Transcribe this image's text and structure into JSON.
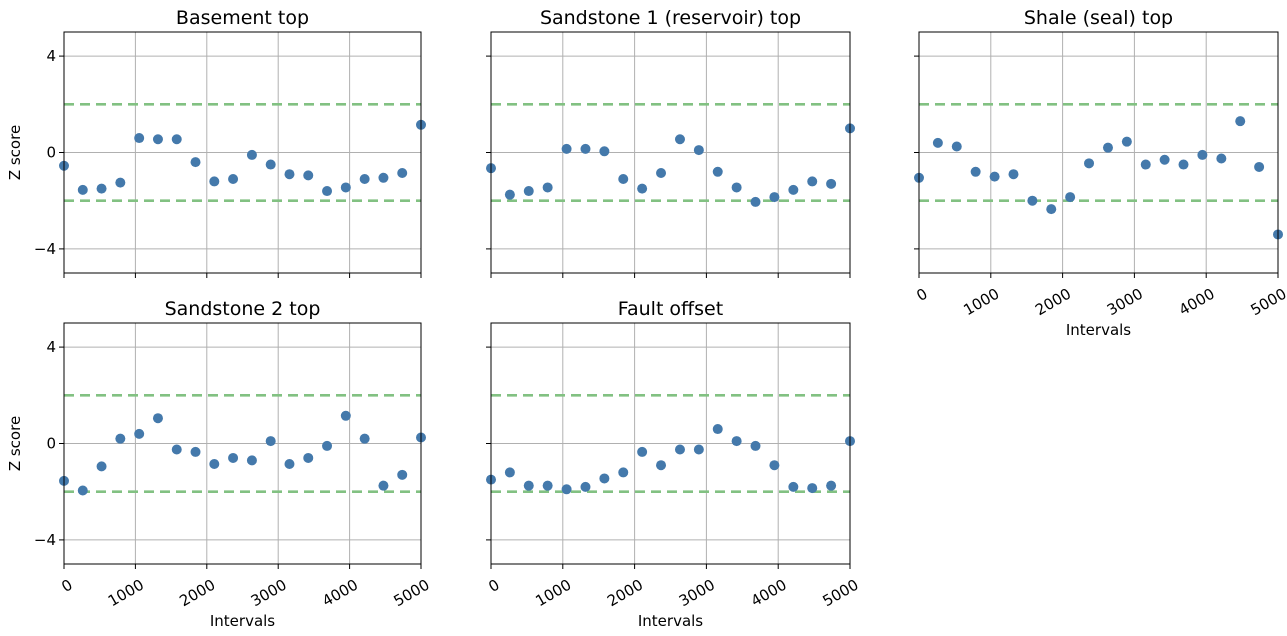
{
  "chart_data": [
    {
      "type": "scatter",
      "title": "Basement top",
      "xlabel": "",
      "ylabel": "Z score",
      "xlim": [
        0,
        5000
      ],
      "ylim": [
        -5,
        5
      ],
      "xticks": [
        "0",
        "1000",
        "2000",
        "3000",
        "4000",
        "5000"
      ],
      "yticks": [
        "4",
        "0",
        "−4"
      ],
      "reference_lines_y": [
        2,
        -2
      ],
      "grid": true,
      "x": [
        0,
        263,
        526,
        789,
        1053,
        1316,
        1579,
        1842,
        2105,
        2368,
        2632,
        2895,
        3158,
        3421,
        3684,
        3947,
        4211,
        4474,
        4737,
        5000
      ],
      "y": [
        -0.55,
        -1.55,
        -1.5,
        -1.25,
        0.6,
        0.55,
        0.55,
        -0.4,
        -1.2,
        -1.1,
        -0.1,
        -0.5,
        -0.9,
        -0.95,
        -1.6,
        -1.45,
        -1.1,
        -1.05,
        -0.85,
        1.15
      ]
    },
    {
      "type": "scatter",
      "title": "Sandstone 1 (reservoir) top",
      "xlabel": "",
      "ylabel": "",
      "xlim": [
        0,
        5000
      ],
      "ylim": [
        -5,
        5
      ],
      "xticks": [
        "0",
        "1000",
        "2000",
        "3000",
        "4000",
        "5000"
      ],
      "yticks": [
        "4",
        "0",
        "−4"
      ],
      "reference_lines_y": [
        2,
        -2
      ],
      "grid": true,
      "x": [
        0,
        263,
        526,
        789,
        1053,
        1316,
        1579,
        1842,
        2105,
        2368,
        2632,
        2895,
        3158,
        3421,
        3684,
        3947,
        4211,
        4474,
        4737,
        5000
      ],
      "y": [
        -0.65,
        -1.75,
        -1.6,
        -1.45,
        0.15,
        0.15,
        0.05,
        -1.1,
        -1.5,
        -0.85,
        0.55,
        0.1,
        -0.8,
        -1.45,
        -2.05,
        -1.85,
        -1.55,
        -1.2,
        -1.3,
        1.0
      ]
    },
    {
      "type": "scatter",
      "title": "Shale (seal) top",
      "xlabel": "Intervals",
      "ylabel": "",
      "xlim": [
        0,
        5000
      ],
      "ylim": [
        -5,
        5
      ],
      "xticks": [
        "0",
        "1000",
        "2000",
        "3000",
        "4000",
        "5000"
      ],
      "yticks": [
        "4",
        "0",
        "−4"
      ],
      "reference_lines_y": [
        2,
        -2
      ],
      "grid": true,
      "x": [
        0,
        263,
        526,
        789,
        1053,
        1316,
        1579,
        1842,
        2105,
        2368,
        2632,
        2895,
        3158,
        3421,
        3684,
        3947,
        4211,
        4474,
        4737,
        5000
      ],
      "y": [
        -1.05,
        0.4,
        0.25,
        -0.8,
        -1.0,
        -0.9,
        -2.0,
        -2.35,
        -1.85,
        -0.45,
        0.2,
        0.45,
        -0.5,
        -0.3,
        -0.5,
        -0.1,
        -0.25,
        1.3,
        -0.6,
        -3.4
      ]
    },
    {
      "type": "scatter",
      "title": "Sandstone 2 top",
      "xlabel": "Intervals",
      "ylabel": "Z score",
      "xlim": [
        0,
        5000
      ],
      "ylim": [
        -5,
        5
      ],
      "xticks": [
        "0",
        "1000",
        "2000",
        "3000",
        "4000",
        "5000"
      ],
      "yticks": [
        "4",
        "0",
        "−4"
      ],
      "reference_lines_y": [
        2,
        -2
      ],
      "grid": true,
      "x": [
        0,
        263,
        526,
        789,
        1053,
        1316,
        1579,
        1842,
        2105,
        2368,
        2632,
        2895,
        3158,
        3421,
        3684,
        3947,
        4211,
        4474,
        4737,
        5000
      ],
      "y": [
        -1.55,
        -1.95,
        -0.95,
        0.2,
        0.4,
        1.05,
        -0.25,
        -0.35,
        -0.85,
        -0.6,
        -0.7,
        0.1,
        -0.85,
        -0.6,
        -0.1,
        1.15,
        0.2,
        -1.75,
        -1.3,
        0.25
      ]
    },
    {
      "type": "scatter",
      "title": "Fault offset",
      "xlabel": "Intervals",
      "ylabel": "",
      "xlim": [
        0,
        5000
      ],
      "ylim": [
        -5,
        5
      ],
      "xticks": [
        "0",
        "1000",
        "2000",
        "3000",
        "4000",
        "5000"
      ],
      "yticks": [
        "4",
        "0",
        "−4"
      ],
      "reference_lines_y": [
        2,
        -2
      ],
      "grid": true,
      "x": [
        0,
        263,
        526,
        789,
        1053,
        1316,
        1579,
        1842,
        2105,
        2368,
        2632,
        2895,
        3158,
        3421,
        3684,
        3947,
        4211,
        4474,
        4737,
        5000
      ],
      "y": [
        -1.5,
        -1.2,
        -1.75,
        -1.75,
        -1.9,
        -1.8,
        -1.45,
        -1.2,
        -0.35,
        -0.9,
        -0.25,
        -0.25,
        0.6,
        0.1,
        -0.1,
        -0.9,
        -1.8,
        -1.85,
        -1.75,
        0.1
      ]
    }
  ],
  "colors": {
    "points": "#4479ab",
    "reference_lines": "#82c182",
    "grid": "#b0b0b0",
    "axes": "#000000"
  }
}
